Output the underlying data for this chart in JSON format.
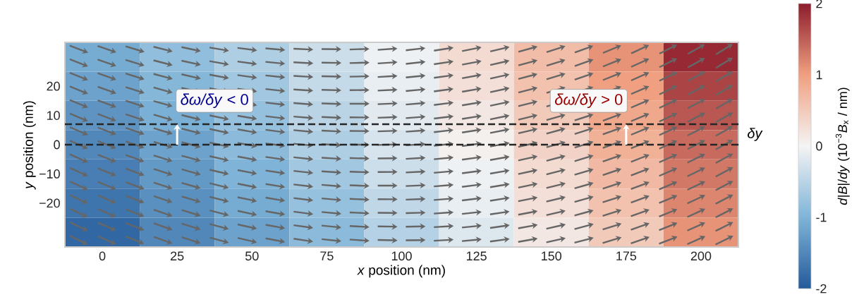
{
  "chart_data": {
    "type": "heatmap",
    "xlabel": "*x* position (nm)",
    "ylabel": "*y* position (nm)",
    "clabel": "*d*|*B*|/*dy* (10$^{−3}$*B*$_{x}$ / nm)",
    "categories": [
      "0",
      "25",
      "50",
      "75",
      "100",
      "125",
      "150",
      "175",
      "200"
    ],
    "y_categories": [
      null,
      "20",
      "10",
      "0",
      "−10",
      "−20",
      null
    ],
    "cells": [
      [
        -1.1,
        -0.85,
        -0.6,
        -0.35,
        -0.05,
        0.3,
        0.65,
        1.1,
        1.9
      ],
      [
        -1.2,
        -0.95,
        -0.7,
        -0.4,
        -0.1,
        0.25,
        0.6,
        1.0,
        1.7
      ],
      [
        -1.35,
        -1.05,
        -0.8,
        -0.5,
        -0.15,
        0.15,
        0.5,
        0.9,
        1.55
      ],
      [
        -1.5,
        -1.2,
        -0.9,
        -0.6,
        -0.25,
        0.05,
        0.4,
        0.8,
        1.4
      ],
      [
        -1.6,
        -1.3,
        -1.0,
        -0.7,
        -0.35,
        -0.05,
        0.3,
        0.7,
        1.3
      ],
      [
        -1.7,
        -1.4,
        -1.1,
        -0.8,
        -0.45,
        -0.1,
        0.25,
        0.6,
        1.2
      ],
      [
        -1.85,
        -1.5,
        -1.2,
        -0.9,
        -0.55,
        -0.2,
        0.15,
        0.5,
        1.1
      ]
    ],
    "clim": [
      -2,
      2
    ],
    "cticks": [
      -2,
      -1,
      0,
      1,
      2
    ],
    "ref_lines": [
      {
        "axis": "y",
        "value": "0",
        "color": "#262626",
        "line_style": "dashed"
      }
    ],
    "annotations": [
      "*δω/δy* < 0",
      "*δω/δy* > 0",
      "*δy*"
    ]
  }
}
